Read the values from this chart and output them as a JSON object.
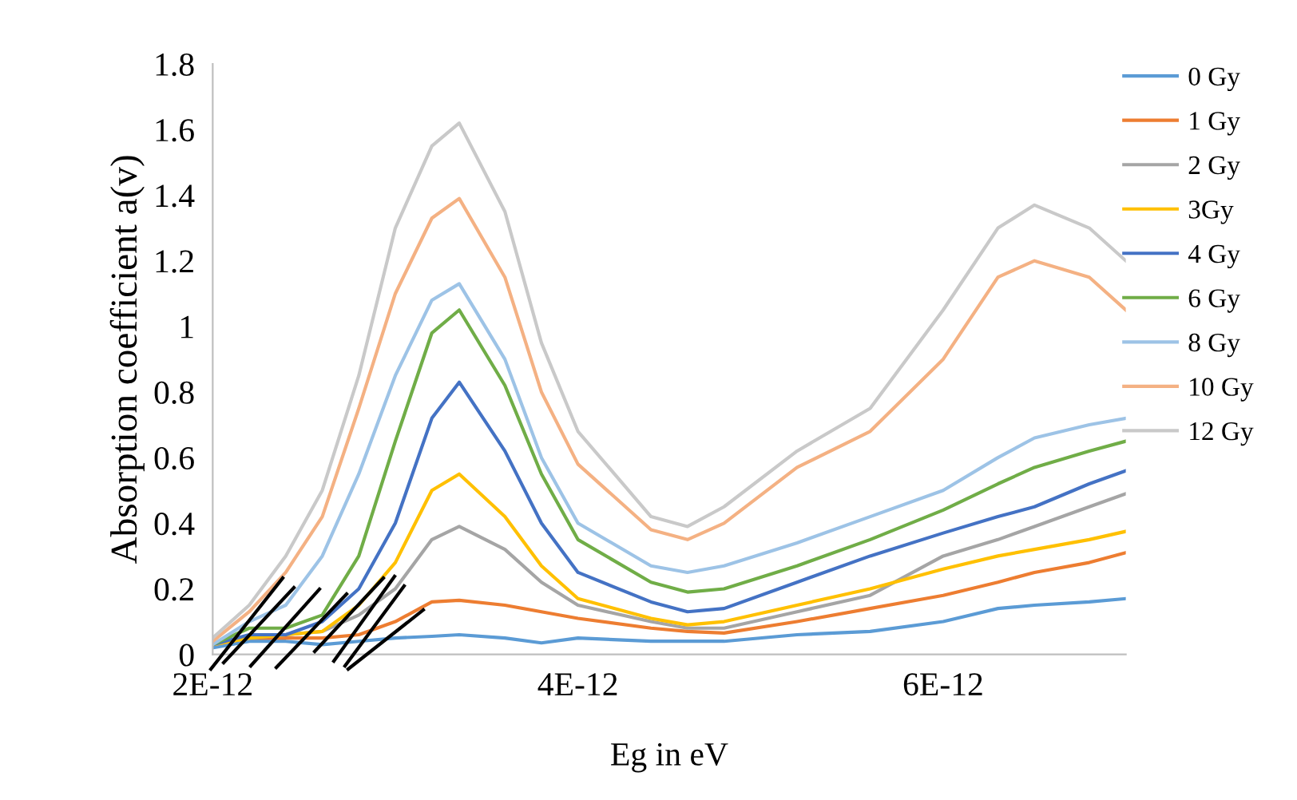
{
  "chart_data": {
    "type": "line",
    "xlabel": "Eg in eV",
    "ylabel": "Absorption coefficient a(v)",
    "x": [
      2e-12,
      2.2e-12,
      2.4e-12,
      2.6e-12,
      2.8e-12,
      3e-12,
      3.2e-12,
      3.35e-12,
      3.6e-12,
      3.8e-12,
      4e-12,
      4.4e-12,
      4.6e-12,
      4.8e-12,
      5.2e-12,
      5.6e-12,
      6e-12,
      6.3e-12,
      6.5e-12,
      6.8e-12,
      7e-12
    ],
    "series": [
      {
        "name": "0 Gy",
        "color": "#5b9bd5",
        "values": [
          0.02,
          0.04,
          0.04,
          0.03,
          0.04,
          0.05,
          0.055,
          0.06,
          0.05,
          0.035,
          0.05,
          0.04,
          0.04,
          0.04,
          0.06,
          0.07,
          0.1,
          0.14,
          0.15,
          0.16,
          0.17
        ]
      },
      {
        "name": "1 Gy",
        "color": "#ed7d31",
        "values": [
          0.03,
          0.05,
          0.05,
          0.05,
          0.06,
          0.1,
          0.16,
          0.165,
          0.15,
          0.13,
          0.11,
          0.08,
          0.07,
          0.065,
          0.1,
          0.14,
          0.18,
          0.22,
          0.25,
          0.28,
          0.31
        ]
      },
      {
        "name": "2 Gy",
        "color": "#a5a5a5",
        "values": [
          0.03,
          0.05,
          0.06,
          0.07,
          0.12,
          0.2,
          0.35,
          0.39,
          0.32,
          0.22,
          0.15,
          0.1,
          0.08,
          0.08,
          0.13,
          0.18,
          0.3,
          0.35,
          0.39,
          0.45,
          0.49
        ]
      },
      {
        "name": "3Gy",
        "color": "#ffc000",
        "values": [
          0.03,
          0.05,
          0.06,
          0.07,
          0.15,
          0.28,
          0.5,
          0.55,
          0.42,
          0.27,
          0.17,
          0.11,
          0.09,
          0.1,
          0.15,
          0.2,
          0.26,
          0.3,
          0.32,
          0.35,
          0.375
        ]
      },
      {
        "name": "4 Gy",
        "color": "#4472c4",
        "values": [
          0.03,
          0.06,
          0.06,
          0.1,
          0.2,
          0.4,
          0.72,
          0.83,
          0.62,
          0.4,
          0.25,
          0.16,
          0.13,
          0.14,
          0.22,
          0.3,
          0.37,
          0.42,
          0.45,
          0.52,
          0.56
        ]
      },
      {
        "name": "6 Gy",
        "color": "#70ad47",
        "values": [
          0.03,
          0.08,
          0.08,
          0.12,
          0.3,
          0.65,
          0.98,
          1.05,
          0.82,
          0.55,
          0.35,
          0.22,
          0.19,
          0.2,
          0.27,
          0.35,
          0.44,
          0.52,
          0.57,
          0.62,
          0.65
        ]
      },
      {
        "name": "8 Gy",
        "color": "#9dc3e6",
        "values": [
          0.03,
          0.1,
          0.15,
          0.3,
          0.55,
          0.85,
          1.08,
          1.13,
          0.9,
          0.6,
          0.4,
          0.27,
          0.25,
          0.27,
          0.34,
          0.42,
          0.5,
          0.6,
          0.66,
          0.7,
          0.72
        ]
      },
      {
        "name": "10 Gy",
        "color": "#f4b183",
        "values": [
          0.04,
          0.13,
          0.25,
          0.42,
          0.75,
          1.1,
          1.33,
          1.39,
          1.15,
          0.8,
          0.58,
          0.38,
          0.35,
          0.4,
          0.57,
          0.68,
          0.9,
          1.15,
          1.2,
          1.15,
          1.05
        ]
      },
      {
        "name": "12 Gy",
        "color": "#c9c9c9",
        "values": [
          0.05,
          0.15,
          0.3,
          0.5,
          0.85,
          1.3,
          1.55,
          1.62,
          1.35,
          0.95,
          0.68,
          0.42,
          0.39,
          0.45,
          0.62,
          0.75,
          1.05,
          1.3,
          1.37,
          1.3,
          1.2
        ]
      }
    ],
    "xlim": [
      2e-12,
      7e-12
    ],
    "xticks": [
      {
        "value": 2e-12,
        "label": "2E-12"
      },
      {
        "value": 4e-12,
        "label": "4E-12"
      },
      {
        "value": 6e-12,
        "label": "6E-12"
      }
    ],
    "ylim": [
      0,
      1.8
    ],
    "yticks": [
      0,
      0.2,
      0.4,
      0.6,
      0.8,
      1,
      1.2,
      1.4,
      1.6,
      1.8
    ],
    "grid": false,
    "legend": "right",
    "marker": "none",
    "line_style": "solid"
  }
}
